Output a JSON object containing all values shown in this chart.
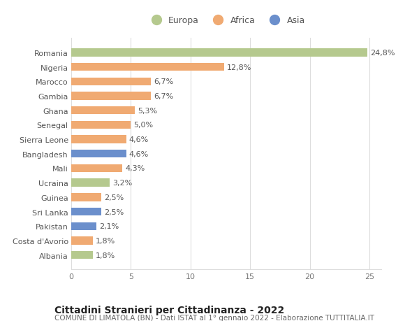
{
  "countries": [
    "Romania",
    "Nigeria",
    "Marocco",
    "Gambia",
    "Ghana",
    "Senegal",
    "Sierra Leone",
    "Bangladesh",
    "Mali",
    "Ucraina",
    "Guinea",
    "Sri Lanka",
    "Pakistan",
    "Costa d'Avorio",
    "Albania"
  ],
  "values": [
    24.8,
    12.8,
    6.7,
    6.7,
    5.3,
    5.0,
    4.6,
    4.6,
    4.3,
    3.2,
    2.5,
    2.5,
    2.1,
    1.8,
    1.8
  ],
  "labels": [
    "24,8%",
    "12,8%",
    "6,7%",
    "6,7%",
    "5,3%",
    "5,0%",
    "4,6%",
    "4,6%",
    "4,3%",
    "3,2%",
    "2,5%",
    "2,5%",
    "2,1%",
    "1,8%",
    "1,8%"
  ],
  "continents": [
    "Europa",
    "Africa",
    "Africa",
    "Africa",
    "Africa",
    "Africa",
    "Africa",
    "Asia",
    "Africa",
    "Europa",
    "Africa",
    "Asia",
    "Asia",
    "Africa",
    "Europa"
  ],
  "colors": {
    "Europa": "#b5c98e",
    "Africa": "#f0aa72",
    "Asia": "#6b8fcc"
  },
  "legend_labels": [
    "Europa",
    "Africa",
    "Asia"
  ],
  "title": "Cittadini Stranieri per Cittadinanza - 2022",
  "subtitle": "COMUNE DI LIMATOLA (BN) - Dati ISTAT al 1° gennaio 2022 - Elaborazione TUTTITALIA.IT",
  "xlim": [
    0,
    26
  ],
  "xticks": [
    0,
    5,
    10,
    15,
    20,
    25
  ],
  "bg_color": "#ffffff",
  "grid_color": "#dddddd",
  "bar_height": 0.55,
  "title_fontsize": 10,
  "subtitle_fontsize": 7.5,
  "label_fontsize": 8,
  "tick_fontsize": 8
}
